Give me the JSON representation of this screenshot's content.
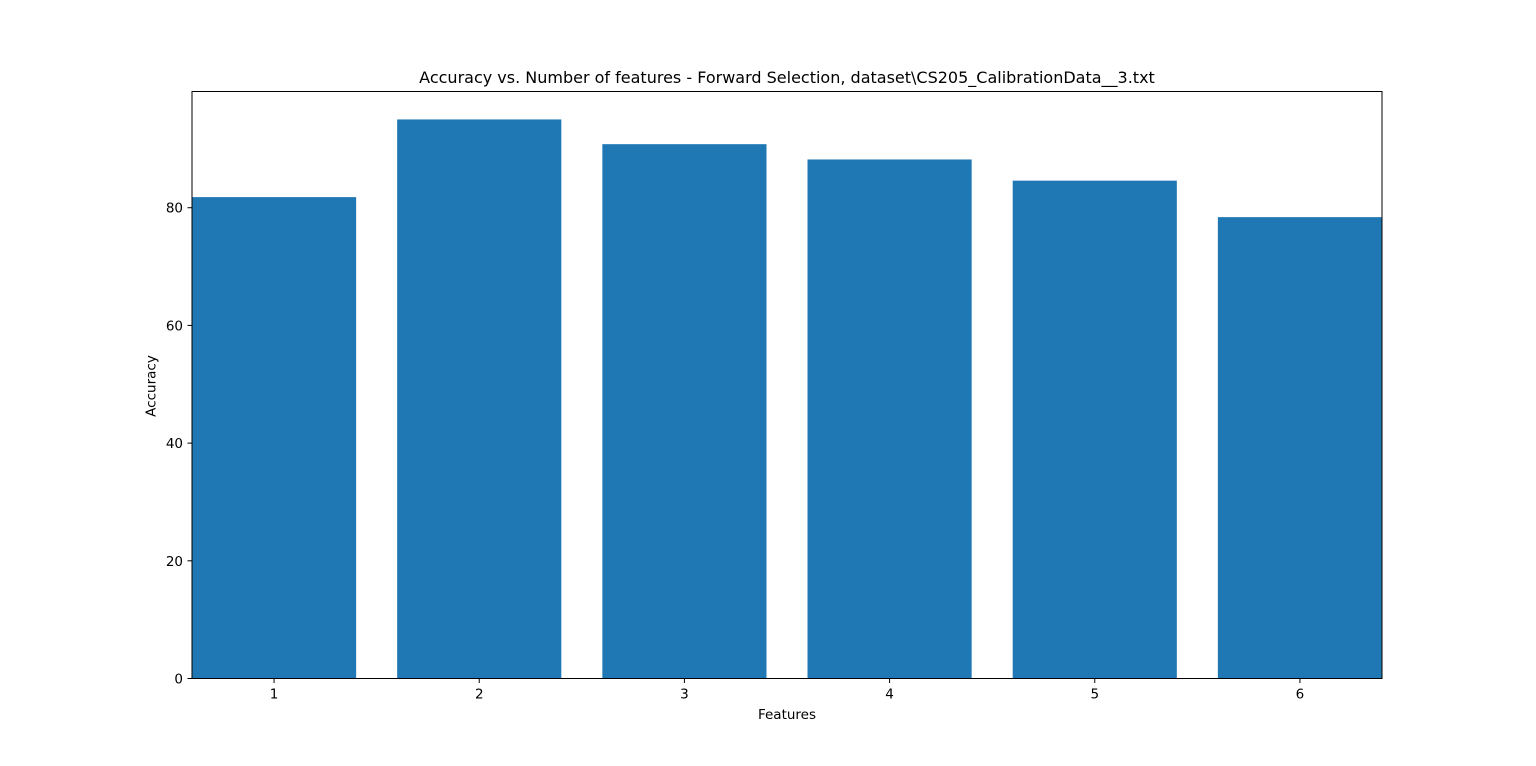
{
  "chart_data": {
    "type": "bar",
    "title": "Accuracy vs. Number of features - Forward Selection, dataset\\CS205_CalibrationData__3.txt",
    "xlabel": "Features",
    "ylabel": "Accuracy",
    "categories": [
      "1",
      "2",
      "3",
      "4",
      "5",
      "6"
    ],
    "values": [
      81.8,
      95.0,
      90.8,
      88.2,
      84.6,
      78.4
    ],
    "ylim": [
      0,
      99.75
    ],
    "yticks": [
      0,
      20,
      40,
      60,
      80
    ],
    "grid": false,
    "legend": "none",
    "bar_color": "#1f77b4"
  }
}
